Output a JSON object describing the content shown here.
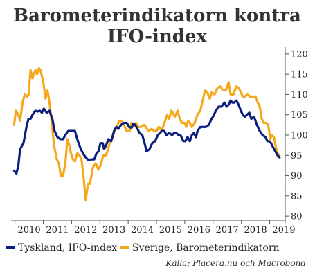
{
  "chart_data": {
    "type": "line",
    "title_lines": [
      "Barometerindikatorn kontra",
      "IFO-index"
    ],
    "x_ticks": [
      "2010",
      "2011",
      "2012",
      "2013",
      "2014",
      "2015",
      "2016",
      "2017",
      "2018",
      "2019"
    ],
    "y_ticks": [
      80,
      85,
      90,
      95,
      100,
      105,
      110,
      115,
      120
    ],
    "xlim": [
      2009.96,
      2019.55
    ],
    "ylim": [
      79,
      121
    ],
    "grid": false,
    "legend_position": "bottom",
    "source": "Källa; Placera.nu och Macrobond",
    "series": [
      {
        "name": "Tyskland, IFO-index",
        "color": "#0a1e7d",
        "points": [
          [
            2009.97,
            91.2
          ],
          [
            2010.05,
            90.5
          ],
          [
            2010.12,
            92.5
          ],
          [
            2010.18,
            96.5
          ],
          [
            2010.3,
            98
          ],
          [
            2010.42,
            102.5
          ],
          [
            2010.48,
            104
          ],
          [
            2010.55,
            104
          ],
          [
            2010.62,
            105
          ],
          [
            2010.72,
            106
          ],
          [
            2010.8,
            105.8
          ],
          [
            2010.88,
            106
          ],
          [
            2010.95,
            105.5
          ],
          [
            2011.02,
            106.5
          ],
          [
            2011.12,
            105.5
          ],
          [
            2011.22,
            106
          ],
          [
            2011.32,
            104
          ],
          [
            2011.4,
            101
          ],
          [
            2011.5,
            99.5
          ],
          [
            2011.6,
            99
          ],
          [
            2011.7,
            99
          ],
          [
            2011.78,
            100
          ],
          [
            2011.88,
            101
          ],
          [
            2011.95,
            101
          ],
          [
            2012.05,
            101
          ],
          [
            2012.12,
            101
          ],
          [
            2012.2,
            99
          ],
          [
            2012.3,
            97
          ],
          [
            2012.4,
            95.5
          ],
          [
            2012.5,
            94.5
          ],
          [
            2012.6,
            93.8
          ],
          [
            2012.7,
            94
          ],
          [
            2012.8,
            94
          ],
          [
            2012.88,
            95.5
          ],
          [
            2012.95,
            96
          ],
          [
            2013.02,
            98
          ],
          [
            2013.1,
            98
          ],
          [
            2013.15,
            96.5
          ],
          [
            2013.25,
            98
          ],
          [
            2013.3,
            99
          ],
          [
            2013.4,
            98.5
          ],
          [
            2013.5,
            101
          ],
          [
            2013.58,
            102
          ],
          [
            2013.65,
            101.5
          ],
          [
            2013.75,
            102.5
          ],
          [
            2013.85,
            103
          ],
          [
            2013.95,
            103
          ],
          [
            2014.03,
            102
          ],
          [
            2014.12,
            101.8
          ],
          [
            2014.18,
            102.8
          ],
          [
            2014.25,
            102.5
          ],
          [
            2014.33,
            101.5
          ],
          [
            2014.4,
            100.5
          ],
          [
            2014.5,
            100
          ],
          [
            2014.58,
            98
          ],
          [
            2014.65,
            96
          ],
          [
            2014.75,
            96.5
          ],
          [
            2014.85,
            98
          ],
          [
            2014.95,
            98.5
          ],
          [
            2015.05,
            100
          ],
          [
            2015.12,
            100.5
          ],
          [
            2015.2,
            101
          ],
          [
            2015.28,
            101
          ],
          [
            2015.35,
            100
          ],
          [
            2015.45,
            100.5
          ],
          [
            2015.55,
            100
          ],
          [
            2015.62,
            100.5
          ],
          [
            2015.7,
            100.5
          ],
          [
            2015.78,
            100
          ],
          [
            2015.85,
            100
          ],
          [
            2015.95,
            98.5
          ],
          [
            2016.02,
            98.5
          ],
          [
            2016.1,
            99.5
          ],
          [
            2016.18,
            98.5
          ],
          [
            2016.25,
            100
          ],
          [
            2016.32,
            100.5
          ],
          [
            2016.4,
            99.5
          ],
          [
            2016.45,
            101
          ],
          [
            2016.55,
            102
          ],
          [
            2016.65,
            102
          ],
          [
            2016.75,
            102
          ],
          [
            2016.85,
            102.5
          ],
          [
            2016.95,
            104
          ],
          [
            2017.02,
            104.8
          ],
          [
            2017.1,
            106
          ],
          [
            2017.2,
            107
          ],
          [
            2017.3,
            107
          ],
          [
            2017.4,
            108
          ],
          [
            2017.48,
            107
          ],
          [
            2017.55,
            107.5
          ],
          [
            2017.62,
            108.5
          ],
          [
            2017.68,
            108
          ],
          [
            2017.75,
            108
          ],
          [
            2017.82,
            108.5
          ],
          [
            2017.9,
            107.5
          ],
          [
            2017.98,
            106
          ],
          [
            2018.05,
            105
          ],
          [
            2018.12,
            104.5
          ],
          [
            2018.2,
            105
          ],
          [
            2018.28,
            105.5
          ],
          [
            2018.35,
            104
          ],
          [
            2018.45,
            104.5
          ],
          [
            2018.55,
            102.5
          ],
          [
            2018.65,
            101
          ],
          [
            2018.75,
            100
          ],
          [
            2018.85,
            99.5
          ],
          [
            2018.92,
            98.5
          ],
          [
            2018.98,
            98.5
          ],
          [
            2019.05,
            98
          ],
          [
            2019.12,
            97
          ],
          [
            2019.2,
            96
          ],
          [
            2019.28,
            95
          ],
          [
            2019.35,
            94.5
          ]
        ]
      },
      {
        "name": "Sverige, Barometerindikatorn",
        "color": "#f5a81c",
        "points": [
          [
            2009.97,
            102.5
          ],
          [
            2010.03,
            106
          ],
          [
            2010.12,
            105
          ],
          [
            2010.18,
            103.5
          ],
          [
            2010.28,
            108.5
          ],
          [
            2010.35,
            110
          ],
          [
            2010.42,
            109.5
          ],
          [
            2010.48,
            110
          ],
          [
            2010.55,
            116
          ],
          [
            2010.62,
            114
          ],
          [
            2010.72,
            116
          ],
          [
            2010.78,
            115
          ],
          [
            2010.85,
            116.5
          ],
          [
            2010.9,
            116
          ],
          [
            2011.0,
            113
          ],
          [
            2011.08,
            109
          ],
          [
            2011.15,
            111
          ],
          [
            2011.22,
            108
          ],
          [
            2011.3,
            103
          ],
          [
            2011.38,
            97.5
          ],
          [
            2011.48,
            94
          ],
          [
            2011.55,
            93
          ],
          [
            2011.62,
            90
          ],
          [
            2011.7,
            90
          ],
          [
            2011.78,
            93
          ],
          [
            2011.85,
            99
          ],
          [
            2011.92,
            97.5
          ],
          [
            2011.98,
            95.5
          ],
          [
            2012.05,
            94
          ],
          [
            2012.12,
            93.5
          ],
          [
            2012.2,
            95.5
          ],
          [
            2012.28,
            95
          ],
          [
            2012.35,
            94
          ],
          [
            2012.42,
            90
          ],
          [
            2012.5,
            84
          ],
          [
            2012.58,
            88
          ],
          [
            2012.65,
            88
          ],
          [
            2012.75,
            92
          ],
          [
            2012.85,
            93
          ],
          [
            2012.95,
            91.5
          ],
          [
            2013.02,
            92.5
          ],
          [
            2013.12,
            95
          ],
          [
            2013.22,
            95
          ],
          [
            2013.35,
            98
          ],
          [
            2013.45,
            99.5
          ],
          [
            2013.52,
            101
          ],
          [
            2013.6,
            102
          ],
          [
            2013.68,
            103.5
          ],
          [
            2013.75,
            103.5
          ],
          [
            2013.85,
            102.5
          ],
          [
            2013.95,
            101
          ],
          [
            2014.05,
            101
          ],
          [
            2014.12,
            103
          ],
          [
            2014.2,
            102
          ],
          [
            2014.28,
            103
          ],
          [
            2014.35,
            102
          ],
          [
            2014.45,
            102
          ],
          [
            2014.55,
            102.5
          ],
          [
            2014.62,
            102
          ],
          [
            2014.72,
            101
          ],
          [
            2014.82,
            101.5
          ],
          [
            2014.92,
            101
          ],
          [
            2015.0,
            101
          ],
          [
            2015.08,
            102
          ],
          [
            2015.18,
            101
          ],
          [
            2015.28,
            103
          ],
          [
            2015.38,
            105
          ],
          [
            2015.45,
            104
          ],
          [
            2015.52,
            106
          ],
          [
            2015.58,
            105.5
          ],
          [
            2015.65,
            104.5
          ],
          [
            2015.75,
            106
          ],
          [
            2015.82,
            104
          ],
          [
            2015.9,
            103
          ],
          [
            2016.0,
            103
          ],
          [
            2016.05,
            102
          ],
          [
            2016.12,
            103.5
          ],
          [
            2016.18,
            103
          ],
          [
            2016.25,
            102
          ],
          [
            2016.35,
            103
          ],
          [
            2016.45,
            105
          ],
          [
            2016.55,
            106
          ],
          [
            2016.65,
            109
          ],
          [
            2016.72,
            111
          ],
          [
            2016.8,
            110.5
          ],
          [
            2016.88,
            109
          ],
          [
            2016.95,
            110.5
          ],
          [
            2017.05,
            110
          ],
          [
            2017.15,
            111.5
          ],
          [
            2017.25,
            112
          ],
          [
            2017.35,
            111
          ],
          [
            2017.45,
            111
          ],
          [
            2017.5,
            112
          ],
          [
            2017.55,
            113
          ],
          [
            2017.62,
            110
          ],
          [
            2017.72,
            110
          ],
          [
            2017.82,
            112
          ],
          [
            2017.92,
            111.5
          ],
          [
            2017.98,
            110.5
          ],
          [
            2018.05,
            109.5
          ],
          [
            2018.12,
            109.5
          ],
          [
            2018.22,
            110
          ],
          [
            2018.3,
            109.5
          ],
          [
            2018.4,
            109.5
          ],
          [
            2018.5,
            109.5
          ],
          [
            2018.58,
            108
          ],
          [
            2018.65,
            107
          ],
          [
            2018.72,
            104
          ],
          [
            2018.8,
            103
          ],
          [
            2018.88,
            103
          ],
          [
            2018.95,
            102.5
          ],
          [
            2019.02,
            99
          ],
          [
            2019.08,
            100
          ],
          [
            2019.15,
            99.5
          ],
          [
            2019.22,
            97
          ],
          [
            2019.28,
            95.5
          ],
          [
            2019.35,
            95
          ]
        ]
      }
    ]
  }
}
